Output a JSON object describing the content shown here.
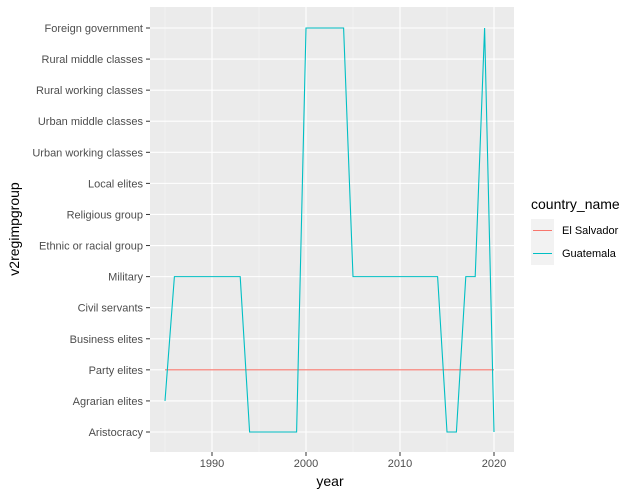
{
  "chart_data": {
    "type": "line",
    "xlabel": "year",
    "ylabel": "v2regimpgroup",
    "xlim": [
      1984,
      2021
    ],
    "x_ticks": [
      1990,
      2000,
      2010,
      2020
    ],
    "categories": [
      "Aristocracy",
      "Agrarian elites",
      "Party elites",
      "Business elites",
      "Civil servants",
      "Military",
      "Ethnic or racial group",
      "Religious group",
      "Local elites",
      "Urban working classes",
      "Urban middle classes",
      "Rural working classes",
      "Rural middle classes",
      "Foreign government"
    ],
    "legend": {
      "title": "country_name",
      "position": "right"
    },
    "grid": true,
    "series": [
      {
        "name": "El Salvador",
        "color": "#F8766D",
        "points": [
          [
            1985,
            "Party elites"
          ],
          [
            2020,
            "Party elites"
          ]
        ]
      },
      {
        "name": "Guatemala",
        "color": "#00BFC4",
        "points": [
          [
            1985,
            "Agrarian elites"
          ],
          [
            1986,
            "Military"
          ],
          [
            1987,
            "Military"
          ],
          [
            1988,
            "Military"
          ],
          [
            1989,
            "Military"
          ],
          [
            1990,
            "Military"
          ],
          [
            1991,
            "Military"
          ],
          [
            1992,
            "Military"
          ],
          [
            1993,
            "Military"
          ],
          [
            1994,
            "Aristocracy"
          ],
          [
            1995,
            "Aristocracy"
          ],
          [
            1996,
            "Aristocracy"
          ],
          [
            1997,
            "Aristocracy"
          ],
          [
            1998,
            "Aristocracy"
          ],
          [
            1999,
            "Aristocracy"
          ],
          [
            2000,
            "Foreign government"
          ],
          [
            2001,
            "Foreign government"
          ],
          [
            2002,
            "Foreign government"
          ],
          [
            2003,
            "Foreign government"
          ],
          [
            2004,
            "Foreign government"
          ],
          [
            2005,
            "Military"
          ],
          [
            2006,
            "Military"
          ],
          [
            2007,
            "Military"
          ],
          [
            2008,
            "Military"
          ],
          [
            2009,
            "Military"
          ],
          [
            2010,
            "Military"
          ],
          [
            2011,
            "Military"
          ],
          [
            2012,
            "Military"
          ],
          [
            2013,
            "Military"
          ],
          [
            2014,
            "Military"
          ],
          [
            2015,
            "Aristocracy"
          ],
          [
            2016,
            "Aristocracy"
          ],
          [
            2017,
            "Military"
          ],
          [
            2018,
            "Military"
          ],
          [
            2019,
            "Foreign government"
          ],
          [
            2020,
            "Aristocracy"
          ]
        ]
      }
    ]
  }
}
